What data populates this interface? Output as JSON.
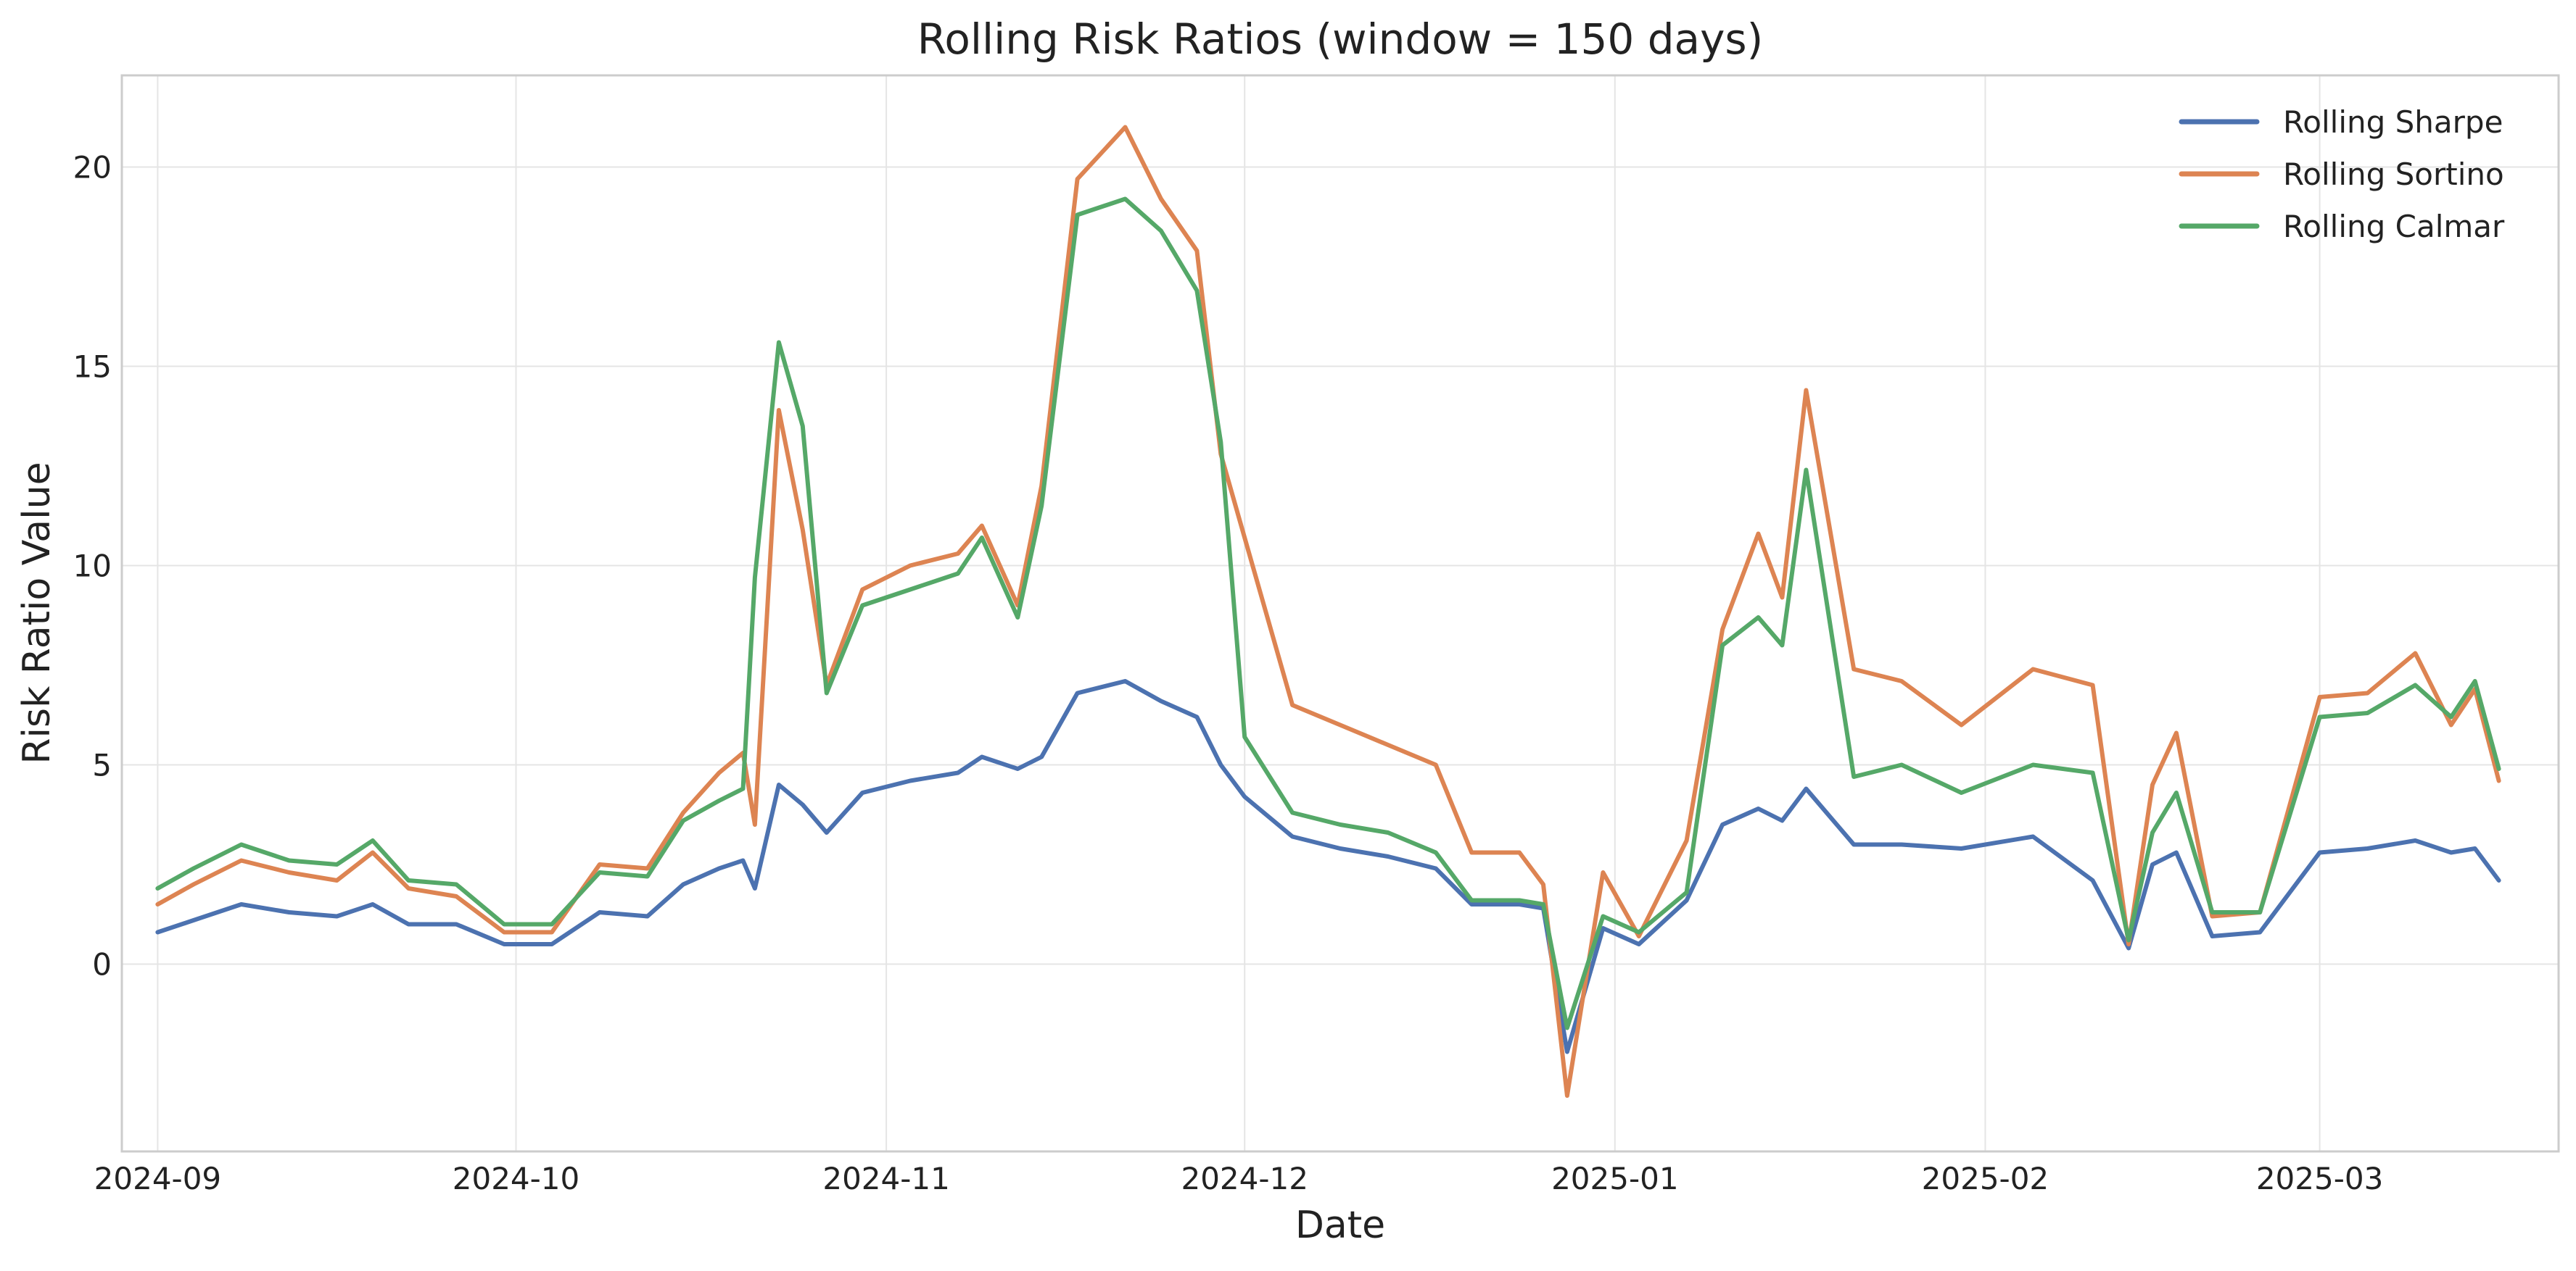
{
  "chart_data": {
    "type": "line",
    "title": "Rolling Risk Ratios (window = 150 days)",
    "xlabel": "Date",
    "ylabel": "Risk Ratio Value",
    "x_axis": {
      "kind": "date",
      "range": [
        "2024-08-29",
        "2025-03-21"
      ],
      "ticks": [
        "2024-09-01",
        "2024-10-01",
        "2024-11-01",
        "2024-12-01",
        "2025-01-01",
        "2025-02-01",
        "2025-03-01"
      ],
      "tick_labels": [
        "2024-09",
        "2024-10",
        "2024-11",
        "2024-12",
        "2025-01",
        "2025-02",
        "2025-03"
      ]
    },
    "y_axis": {
      "range": [
        -4.7,
        22.3
      ],
      "ticks": [
        0,
        5,
        10,
        15,
        20
      ],
      "tick_labels": [
        "0",
        "5",
        "10",
        "15",
        "20"
      ]
    },
    "grid": true,
    "legend_position": "top-right",
    "x": [
      "2024-09-01",
      "2024-09-04",
      "2024-09-08",
      "2024-09-12",
      "2024-09-16",
      "2024-09-19",
      "2024-09-22",
      "2024-09-26",
      "2024-09-30",
      "2024-10-04",
      "2024-10-08",
      "2024-10-12",
      "2024-10-15",
      "2024-10-18",
      "2024-10-20",
      "2024-10-21",
      "2024-10-23",
      "2024-10-25",
      "2024-10-27",
      "2024-10-30",
      "2024-11-03",
      "2024-11-07",
      "2024-11-09",
      "2024-11-12",
      "2024-11-14",
      "2024-11-17",
      "2024-11-21",
      "2024-11-24",
      "2024-11-27",
      "2024-11-29",
      "2024-12-01",
      "2024-12-05",
      "2024-12-09",
      "2024-12-13",
      "2024-12-17",
      "2024-12-20",
      "2024-12-24",
      "2024-12-26",
      "2024-12-28",
      "2024-12-31",
      "2025-01-03",
      "2025-01-07",
      "2025-01-10",
      "2025-01-13",
      "2025-01-15",
      "2025-01-17",
      "2025-01-21",
      "2025-01-25",
      "2025-01-30",
      "2025-02-05",
      "2025-02-10",
      "2025-02-13",
      "2025-02-15",
      "2025-02-17",
      "2025-02-20",
      "2025-02-24",
      "2025-03-01",
      "2025-03-05",
      "2025-03-09",
      "2025-03-12",
      "2025-03-14",
      "2025-03-16"
    ],
    "series": [
      {
        "name": "Rolling Sharpe",
        "color": "#4c72b0",
        "values": [
          0.8,
          1.1,
          1.5,
          1.3,
          1.2,
          1.5,
          1.0,
          1.0,
          0.5,
          0.5,
          1.3,
          1.2,
          2.0,
          2.4,
          2.6,
          1.9,
          4.5,
          4.0,
          3.3,
          4.3,
          4.6,
          4.8,
          5.2,
          4.9,
          5.2,
          6.8,
          7.1,
          6.6,
          6.2,
          5.0,
          4.2,
          3.2,
          2.9,
          2.7,
          2.4,
          1.5,
          1.5,
          1.4,
          -2.2,
          0.9,
          0.5,
          1.6,
          3.5,
          3.9,
          3.6,
          4.4,
          3.0,
          3.0,
          2.9,
          3.2,
          2.1,
          0.4,
          2.5,
          2.8,
          0.7,
          0.8,
          2.8,
          2.9,
          3.1,
          2.8,
          2.9,
          2.1
        ]
      },
      {
        "name": "Rolling Sortino",
        "color": "#dd8452",
        "values": [
          1.5,
          2.0,
          2.6,
          2.3,
          2.1,
          2.8,
          1.9,
          1.7,
          0.8,
          0.8,
          2.5,
          2.4,
          3.8,
          4.8,
          5.3,
          3.5,
          13.9,
          10.9,
          7.0,
          9.4,
          10.0,
          10.3,
          11.0,
          9.0,
          12.0,
          19.7,
          21.0,
          19.2,
          17.9,
          12.8,
          10.7,
          6.5,
          6.0,
          5.5,
          5.0,
          2.8,
          2.8,
          2.0,
          -3.3,
          2.3,
          0.7,
          3.1,
          8.4,
          10.8,
          9.2,
          14.4,
          7.4,
          7.1,
          6.0,
          7.4,
          7.0,
          0.5,
          4.5,
          5.8,
          1.2,
          1.3,
          6.7,
          6.8,
          7.8,
          6.0,
          6.9,
          4.6
        ]
      },
      {
        "name": "Rolling Calmar",
        "color": "#55a868",
        "values": [
          1.9,
          2.4,
          3.0,
          2.6,
          2.5,
          3.1,
          2.1,
          2.0,
          1.0,
          1.0,
          2.3,
          2.2,
          3.6,
          4.1,
          4.4,
          9.7,
          15.6,
          13.5,
          6.8,
          9.0,
          9.4,
          9.8,
          10.7,
          8.7,
          11.5,
          18.8,
          19.2,
          18.4,
          16.9,
          13.1,
          5.7,
          3.8,
          3.5,
          3.3,
          2.8,
          1.6,
          1.6,
          1.5,
          -1.6,
          1.2,
          0.8,
          1.8,
          8.0,
          8.7,
          8.0,
          12.4,
          4.7,
          5.0,
          4.3,
          5.0,
          4.8,
          0.6,
          3.3,
          4.3,
          1.3,
          1.3,
          6.2,
          6.3,
          7.0,
          6.2,
          7.1,
          4.9
        ]
      }
    ]
  }
}
